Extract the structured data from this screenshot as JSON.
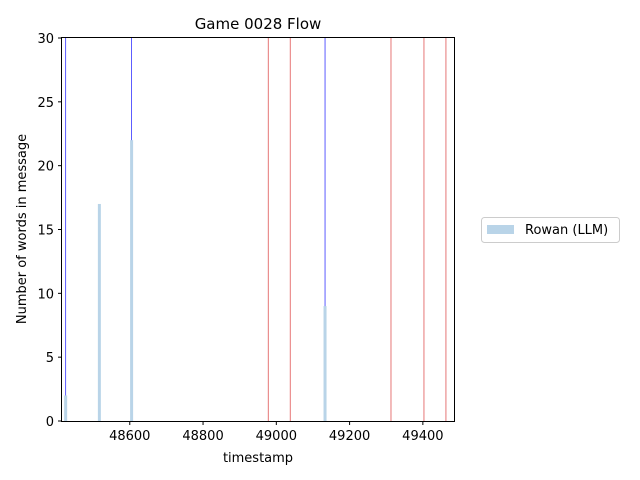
{
  "chart_data": {
    "type": "bar",
    "title": "Game 0028 Flow",
    "xlabel": "timestamp",
    "ylabel": "Number of words in message",
    "xlim": [
      48415,
      49485
    ],
    "ylim": [
      0,
      30
    ],
    "xticks": [
      48600,
      48800,
      49000,
      49200,
      49400
    ],
    "yticks": [
      0,
      5,
      10,
      15,
      20,
      25,
      30
    ],
    "grid": false,
    "legend_position": "right",
    "series": [
      {
        "name": "Rowan (LLM)",
        "color": "#b9d4e8",
        "points": [
          {
            "x": 48425,
            "y": 2
          },
          {
            "x": 48517,
            "y": 17
          },
          {
            "x": 48605,
            "y": 22
          },
          {
            "x": 49133,
            "y": 9
          }
        ]
      }
    ],
    "event_lines": [
      {
        "x": 48425,
        "color": "#3333ff"
      },
      {
        "x": 48605,
        "color": "#3333ff"
      },
      {
        "x": 48978,
        "color": "#e05555"
      },
      {
        "x": 49038,
        "color": "#e05555"
      },
      {
        "x": 49133,
        "color": "#3333ff"
      },
      {
        "x": 49313,
        "color": "#e05555"
      },
      {
        "x": 49403,
        "color": "#e05555"
      },
      {
        "x": 49463,
        "color": "#e05555"
      }
    ]
  }
}
